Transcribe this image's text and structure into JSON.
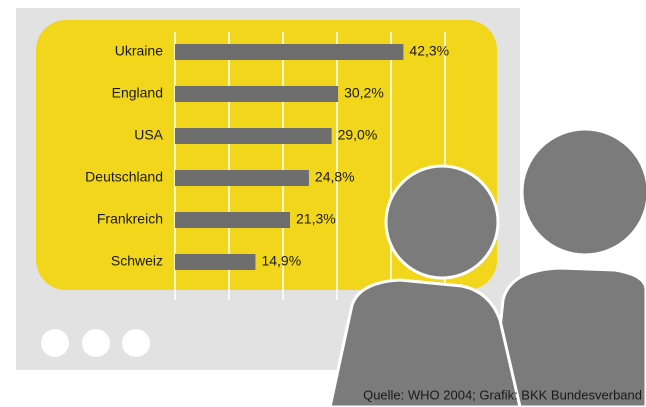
{
  "chart_data": {
    "type": "hbar",
    "categories": [
      "Ukraine",
      "England",
      "USA",
      "Deutschland",
      "Frankreich",
      "Schweiz"
    ],
    "values": [
      42.3,
      30.2,
      29.0,
      24.8,
      21.3,
      14.9
    ],
    "value_labels": [
      "42,3%",
      "30,2%",
      "29,0%",
      "24,8%",
      "21,3%",
      "14,9%"
    ],
    "color": "#6e6e6e",
    "xlim": [
      0,
      50
    ],
    "xticks": [
      0,
      10,
      20,
      30,
      40,
      50
    ],
    "grid": true,
    "source": "Quelle: WHO 2004; Grafik: BKK Bundesverband"
  }
}
